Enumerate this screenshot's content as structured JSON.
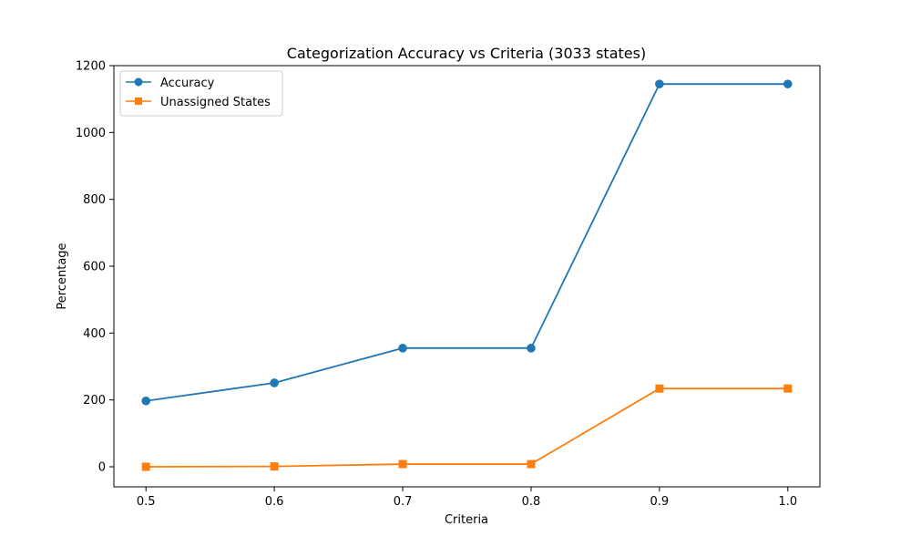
{
  "chart_data": {
    "type": "line",
    "title": "Categorization Accuracy vs Criteria (3033 states)",
    "xlabel": "Criteria",
    "ylabel": "Percentage",
    "x": [
      0.5,
      0.6,
      0.7,
      0.8,
      0.9,
      1.0
    ],
    "xticks": [
      "0.5",
      "0.6",
      "0.7",
      "0.8",
      "0.9",
      "1.0"
    ],
    "yticks": [
      "0",
      "200",
      "400",
      "600",
      "800",
      "1000",
      "1200"
    ],
    "ytick_values": [
      0,
      200,
      400,
      600,
      800,
      1000,
      1200
    ],
    "xlim": [
      0.475,
      1.025
    ],
    "ylim": [
      -60,
      1200
    ],
    "grid": false,
    "legend_position": "top-left",
    "series": [
      {
        "name": "Accuracy",
        "color": "#1f77b4",
        "marker": "circle",
        "values": [
          197,
          251,
          355,
          355,
          1145,
          1145
        ]
      },
      {
        "name": "Unassigned States",
        "color": "#ff7f0e",
        "marker": "square",
        "values": [
          0,
          1,
          8,
          8,
          234,
          234
        ]
      }
    ]
  }
}
